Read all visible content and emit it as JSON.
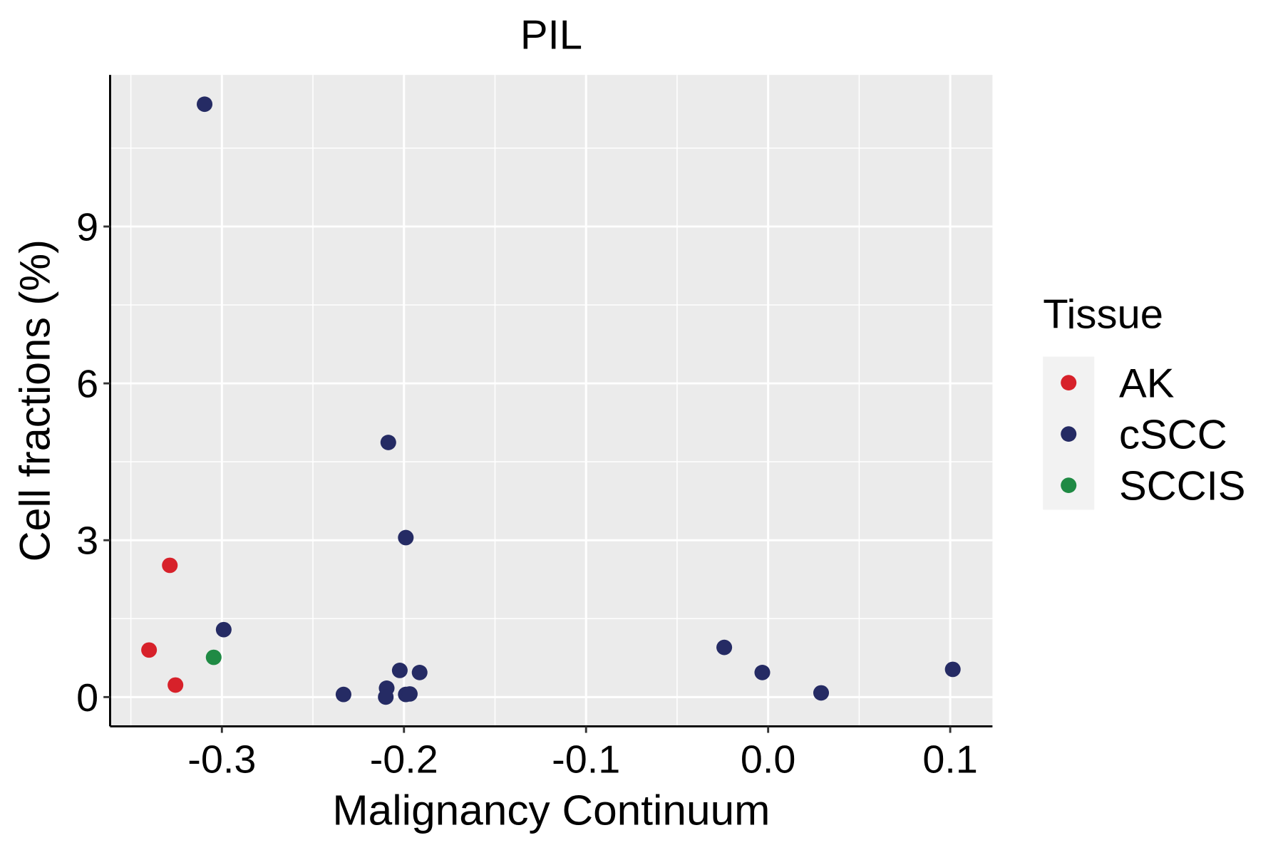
{
  "chart_data": {
    "type": "scatter",
    "title": "PIL",
    "xlabel": "Malignancy Continuum",
    "ylabel": "Cell fractions (%)",
    "xlim": [
      -0.3614,
      0.1232
    ],
    "ylim": [
      -0.56,
      11.9
    ],
    "xticks": [
      -0.3,
      -0.2,
      -0.1,
      0.0,
      0.1
    ],
    "xtick_labels": [
      "-0.3",
      "-0.2",
      "-0.1",
      "0.0",
      "0.1"
    ],
    "yticks": [
      0,
      3,
      6,
      9
    ],
    "ytick_labels": [
      "0",
      "3",
      "6",
      "9"
    ],
    "grid": true,
    "legend": {
      "title": "Tissue",
      "placement": "right",
      "entries": [
        {
          "label": "AK",
          "color": "#d7212a"
        },
        {
          "label": "cSCC",
          "color": "#252b64"
        },
        {
          "label": "SCCIS",
          "color": "#1f8a44"
        }
      ]
    },
    "points": [
      {
        "x": -0.3095,
        "y": 11.34,
        "group": "cSCC"
      },
      {
        "x": -0.2086,
        "y": 4.87,
        "group": "cSCC"
      },
      {
        "x": -0.199,
        "y": 3.05,
        "group": "cSCC"
      },
      {
        "x": -0.3286,
        "y": 2.52,
        "group": "AK"
      },
      {
        "x": -0.299,
        "y": 1.29,
        "group": "cSCC"
      },
      {
        "x": -0.34,
        "y": 0.9,
        "group": "AK"
      },
      {
        "x": -0.3045,
        "y": 0.76,
        "group": "SCCIS"
      },
      {
        "x": -0.3255,
        "y": 0.23,
        "group": "AK"
      },
      {
        "x": -0.2332,
        "y": 0.05,
        "group": "cSCC"
      },
      {
        "x": -0.2095,
        "y": 0.17,
        "group": "cSCC"
      },
      {
        "x": -0.21,
        "y": 0.0,
        "group": "cSCC"
      },
      {
        "x": -0.2023,
        "y": 0.51,
        "group": "cSCC"
      },
      {
        "x": -0.1914,
        "y": 0.47,
        "group": "cSCC"
      },
      {
        "x": -0.199,
        "y": 0.05,
        "group": "cSCC"
      },
      {
        "x": -0.1968,
        "y": 0.06,
        "group": "cSCC"
      },
      {
        "x": -0.0241,
        "y": 0.95,
        "group": "cSCC"
      },
      {
        "x": -0.0032,
        "y": 0.47,
        "group": "cSCC"
      },
      {
        "x": 0.0291,
        "y": 0.08,
        "group": "cSCC"
      },
      {
        "x": 0.1014,
        "y": 0.53,
        "group": "cSCC"
      }
    ]
  }
}
